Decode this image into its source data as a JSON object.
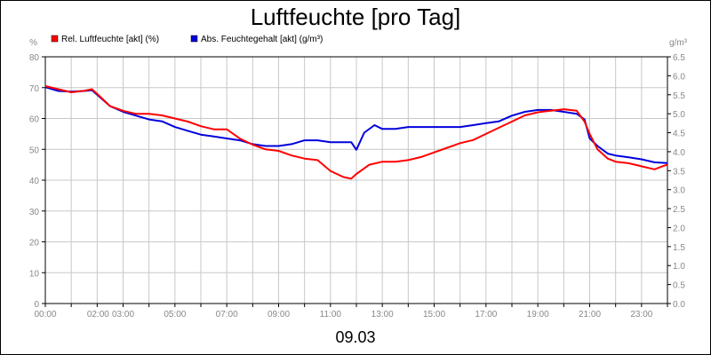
{
  "chart_data": {
    "type": "line",
    "title": "Luftfeuchte [pro Tag]",
    "date_label": "09.03",
    "left_unit": "%",
    "right_unit": "g/m³",
    "ylim_left": [
      0,
      80
    ],
    "ylim_right": [
      0,
      6.5
    ],
    "left_ticks": [
      "0",
      "10",
      "20",
      "30",
      "40",
      "50",
      "60",
      "70",
      "80"
    ],
    "right_ticks": [
      "0.0",
      "0.5",
      "1.0",
      "1.5",
      "2.0",
      "2.5",
      "3.0",
      "3.5",
      "4.0",
      "4.5",
      "5.0",
      "5.5",
      "6.0",
      "6.5"
    ],
    "x_range_hours": [
      0,
      24
    ],
    "x_ticks": [
      {
        "h": 0,
        "label": "00:00"
      },
      {
        "h": 2,
        "label": "02:00"
      },
      {
        "h": 3,
        "label": "03:00"
      },
      {
        "h": 5,
        "label": "05:00"
      },
      {
        "h": 7,
        "label": "07:00"
      },
      {
        "h": 9,
        "label": "09:00"
      },
      {
        "h": 11,
        "label": "11:00"
      },
      {
        "h": 13,
        "label": "13:00"
      },
      {
        "h": 15,
        "label": "15:00"
      },
      {
        "h": 17,
        "label": "17:00"
      },
      {
        "h": 19,
        "label": "19:00"
      },
      {
        "h": 21,
        "label": "21:00"
      },
      {
        "h": 23,
        "label": "23:00"
      }
    ],
    "grid": true,
    "legend_position": "top-left",
    "series": [
      {
        "name": "Rel. Luftfeuchte [akt] (%)",
        "color": "#ff0000",
        "axis": "left",
        "points": [
          [
            0.0,
            70.5
          ],
          [
            0.5,
            69.5
          ],
          [
            1.0,
            68.5
          ],
          [
            1.5,
            69.0
          ],
          [
            1.8,
            69.5
          ],
          [
            2.0,
            68.0
          ],
          [
            2.5,
            64.0
          ],
          [
            3.0,
            62.5
          ],
          [
            3.5,
            61.5
          ],
          [
            4.0,
            61.5
          ],
          [
            4.5,
            61.0
          ],
          [
            5.0,
            60.0
          ],
          [
            5.5,
            59.0
          ],
          [
            6.0,
            57.5
          ],
          [
            6.5,
            56.5
          ],
          [
            7.0,
            56.5
          ],
          [
            7.5,
            53.5
          ],
          [
            8.0,
            51.5
          ],
          [
            8.5,
            50.0
          ],
          [
            9.0,
            49.5
          ],
          [
            9.5,
            48.0
          ],
          [
            10.0,
            47.0
          ],
          [
            10.5,
            46.5
          ],
          [
            11.0,
            43.0
          ],
          [
            11.5,
            41.0
          ],
          [
            11.8,
            40.5
          ],
          [
            12.0,
            42.0
          ],
          [
            12.5,
            45.0
          ],
          [
            13.0,
            46.0
          ],
          [
            13.5,
            46.0
          ],
          [
            14.0,
            46.5
          ],
          [
            14.5,
            47.5
          ],
          [
            15.0,
            49.0
          ],
          [
            15.5,
            50.5
          ],
          [
            16.0,
            52.0
          ],
          [
            16.5,
            53.0
          ],
          [
            17.0,
            55.0
          ],
          [
            17.5,
            57.0
          ],
          [
            18.0,
            59.0
          ],
          [
            18.5,
            61.0
          ],
          [
            19.0,
            62.0
          ],
          [
            19.5,
            62.5
          ],
          [
            20.0,
            63.0
          ],
          [
            20.5,
            62.5
          ],
          [
            20.8,
            59.0
          ],
          [
            21.0,
            55.0
          ],
          [
            21.3,
            50.0
          ],
          [
            21.7,
            47.0
          ],
          [
            22.0,
            46.0
          ],
          [
            22.5,
            45.5
          ],
          [
            23.0,
            44.5
          ],
          [
            23.5,
            43.5
          ],
          [
            23.8,
            44.5
          ],
          [
            24.0,
            45.0
          ]
        ]
      },
      {
        "name": "Abs. Feuchtegehalt [akt] (g/m³)",
        "color": "#0000dd",
        "axis": "right",
        "points": [
          [
            0.0,
            5.7
          ],
          [
            0.5,
            5.6
          ],
          [
            1.0,
            5.58
          ],
          [
            1.5,
            5.6
          ],
          [
            1.8,
            5.62
          ],
          [
            2.0,
            5.5
          ],
          [
            2.5,
            5.2
          ],
          [
            3.0,
            5.05
          ],
          [
            3.5,
            4.95
          ],
          [
            4.0,
            4.85
          ],
          [
            4.5,
            4.8
          ],
          [
            5.0,
            4.65
          ],
          [
            5.5,
            4.55
          ],
          [
            6.0,
            4.45
          ],
          [
            6.5,
            4.4
          ],
          [
            7.0,
            4.35
          ],
          [
            7.5,
            4.3
          ],
          [
            8.0,
            4.2
          ],
          [
            8.5,
            4.15
          ],
          [
            9.0,
            4.15
          ],
          [
            9.5,
            4.2
          ],
          [
            10.0,
            4.3
          ],
          [
            10.5,
            4.3
          ],
          [
            11.0,
            4.25
          ],
          [
            11.5,
            4.25
          ],
          [
            11.8,
            4.25
          ],
          [
            12.0,
            4.05
          ],
          [
            12.3,
            4.5
          ],
          [
            12.7,
            4.7
          ],
          [
            13.0,
            4.6
          ],
          [
            13.5,
            4.6
          ],
          [
            14.0,
            4.65
          ],
          [
            14.5,
            4.65
          ],
          [
            15.0,
            4.65
          ],
          [
            15.5,
            4.65
          ],
          [
            16.0,
            4.65
          ],
          [
            16.5,
            4.7
          ],
          [
            17.0,
            4.75
          ],
          [
            17.5,
            4.8
          ],
          [
            18.0,
            4.95
          ],
          [
            18.5,
            5.05
          ],
          [
            19.0,
            5.1
          ],
          [
            19.5,
            5.1
          ],
          [
            20.0,
            5.05
          ],
          [
            20.5,
            5.0
          ],
          [
            20.8,
            4.85
          ],
          [
            21.0,
            4.35
          ],
          [
            21.3,
            4.15
          ],
          [
            21.7,
            3.95
          ],
          [
            22.0,
            3.9
          ],
          [
            22.5,
            3.85
          ],
          [
            23.0,
            3.8
          ],
          [
            23.5,
            3.72
          ],
          [
            24.0,
            3.7
          ]
        ]
      }
    ]
  }
}
